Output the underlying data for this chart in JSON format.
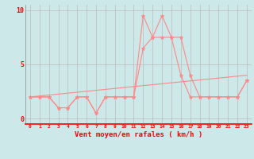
{
  "xlabel": "Vent moyen/en rafales ( km/h )",
  "x_hours": [
    0,
    1,
    2,
    3,
    4,
    5,
    6,
    7,
    8,
    9,
    10,
    11,
    12,
    13,
    14,
    15,
    16,
    17,
    18,
    19,
    20,
    21,
    22,
    23
  ],
  "wind_mean": [
    2,
    2,
    2,
    1,
    1,
    2,
    2,
    0.5,
    2,
    2,
    2,
    2,
    6.5,
    7.5,
    7.5,
    7.5,
    4,
    2,
    2,
    2,
    2,
    2,
    2,
    3.5
  ],
  "wind_gust": [
    2,
    2,
    2,
    1,
    1,
    2,
    2,
    0.5,
    2,
    2,
    2,
    2,
    9.5,
    7.5,
    9.5,
    7.5,
    7.5,
    4,
    2,
    2,
    2,
    2,
    2,
    3.5
  ],
  "trend_x": [
    0,
    23
  ],
  "trend_y": [
    2.0,
    4.0
  ],
  "line_color": "#ff8888",
  "bg_color": "#cce8e8",
  "grid_color": "#bbbbbb",
  "ylim": [
    -0.5,
    10.5
  ],
  "yticks": [
    0,
    5,
    10
  ],
  "xticks": [
    0,
    1,
    2,
    3,
    4,
    5,
    6,
    7,
    8,
    9,
    10,
    11,
    12,
    13,
    14,
    15,
    16,
    17,
    18,
    19,
    20,
    21,
    22,
    23
  ]
}
